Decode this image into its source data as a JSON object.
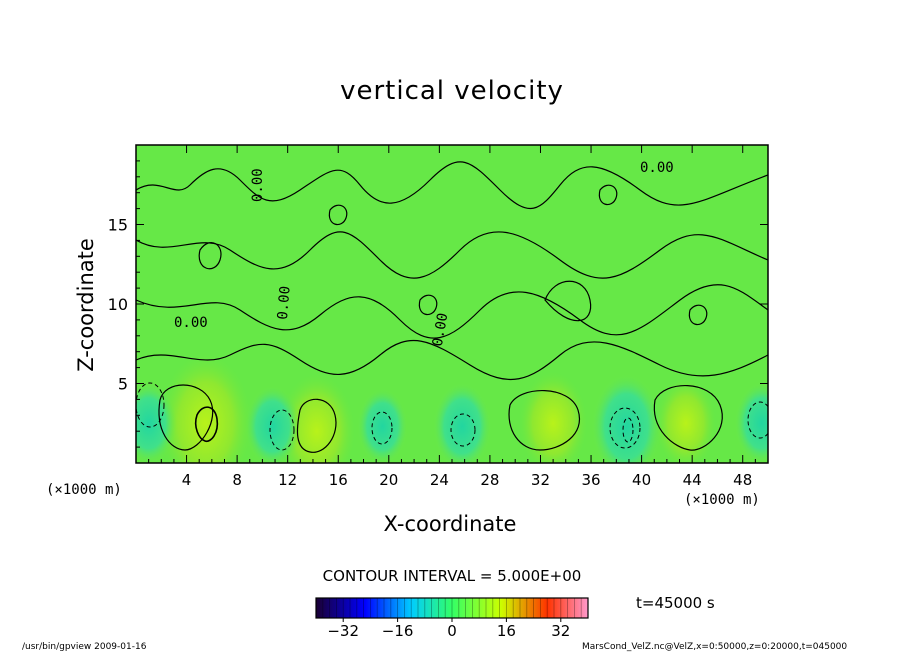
{
  "chart_data": {
    "type": "heatmap",
    "title": "vertical velocity",
    "xlabel": "X-coordinate",
    "ylabel": "Z-coordinate",
    "x_unit": "(×1000 m)",
    "y_unit": "(×1000 m)",
    "xlim": [
      0,
      50
    ],
    "ylim": [
      0,
      20
    ],
    "x_ticks": [
      4,
      8,
      12,
      16,
      20,
      24,
      28,
      32,
      36,
      40,
      44,
      48
    ],
    "y_ticks": [
      5,
      10,
      15
    ],
    "contour_labels": [
      "0.00",
      "0.00",
      "0.00",
      "0.00",
      "0.00"
    ],
    "contour_interval": "CONTOUR INTERVAL = 5.000E+00",
    "colorbar": {
      "ticks": [
        -32,
        -16,
        0,
        16,
        32
      ],
      "range": [
        -40,
        40
      ],
      "colors": [
        "#1a0033",
        "#0000ff",
        "#00ccff",
        "#33ff66",
        "#ccff00",
        "#ff3300",
        "#ff99cc"
      ]
    },
    "cells": [
      {
        "x": 5.5,
        "z": 2.5,
        "value": 14,
        "sign": "positive"
      },
      {
        "x": 14.3,
        "z": 2.0,
        "value": 10,
        "sign": "positive"
      },
      {
        "x": 33.0,
        "z": 2.5,
        "value": 8,
        "sign": "positive"
      },
      {
        "x": 43.5,
        "z": 2.5,
        "value": 6,
        "sign": "positive"
      },
      {
        "x": 1.0,
        "z": 2.5,
        "value": -5,
        "sign": "negative"
      },
      {
        "x": 10.8,
        "z": 2.3,
        "value": -5,
        "sign": "negative"
      },
      {
        "x": 19.5,
        "z": 2.3,
        "value": -4,
        "sign": "negative"
      },
      {
        "x": 25.8,
        "z": 2.3,
        "value": -6,
        "sign": "negative"
      },
      {
        "x": 38.8,
        "z": 2.3,
        "value": -9,
        "sign": "negative"
      },
      {
        "x": 49.5,
        "z": 2.5,
        "value": -5,
        "sign": "negative"
      }
    ]
  },
  "annotations": {
    "time": "t=45000 s",
    "footer_left": "/usr/bin/gpview   2009-01-16",
    "footer_right": "MarsCond_VelZ.nc@VelZ,x=0:50000,z=0:20000,t=045000"
  }
}
